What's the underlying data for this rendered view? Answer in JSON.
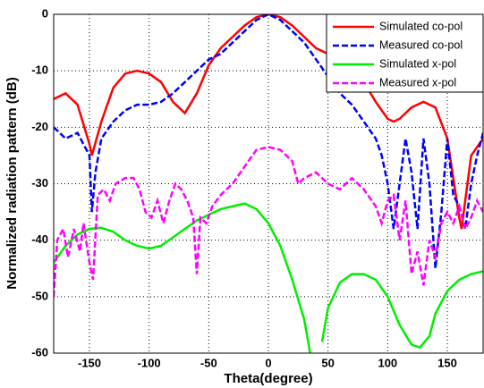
{
  "chart_data": {
    "type": "line",
    "xlabel": "Theta(degree)",
    "ylabel": "Normalized radiation pattern (dB)",
    "xlim": [
      -180,
      180
    ],
    "xticks": [
      -150,
      -100,
      -50,
      0,
      50,
      100,
      150
    ],
    "ylim": [
      -60,
      0
    ],
    "yticks": [
      -60,
      -50,
      -40,
      -30,
      -20,
      -10,
      0
    ],
    "grid": true,
    "legend": "upper right",
    "series": [
      {
        "name": "Simulated co-pol",
        "color": "#ff0000",
        "dash": false,
        "x": [
          -180,
          -170,
          -160,
          -150,
          -148,
          -140,
          -130,
          -120,
          -110,
          -100,
          -90,
          -80,
          -70,
          -60,
          -50,
          -40,
          -30,
          -20,
          -10,
          0,
          10,
          20,
          30,
          40,
          50,
          60,
          70,
          80,
          90,
          100,
          105,
          110,
          120,
          130,
          140,
          150,
          160,
          162,
          165,
          170,
          180
        ],
        "values": [
          -15,
          -14,
          -16,
          -23,
          -25,
          -19,
          -13,
          -10.5,
          -10,
          -10.5,
          -12,
          -15.5,
          -17.5,
          -14,
          -9,
          -6,
          -4,
          -2,
          -0.5,
          0,
          -0.5,
          -2,
          -4,
          -6,
          -7,
          -8,
          -9.5,
          -12,
          -15.5,
          -18.5,
          -19,
          -18.5,
          -16.5,
          -15.5,
          -16.5,
          -22,
          -36,
          -38,
          -33,
          -25,
          -22
        ]
      },
      {
        "name": "Measured co-pol",
        "color": "#0000ff",
        "dash": true,
        "x": [
          -180,
          -170,
          -160,
          -155,
          -150,
          -148,
          -145,
          -140,
          -130,
          -120,
          -110,
          -100,
          -90,
          -80,
          -70,
          -60,
          -50,
          -40,
          -30,
          -20,
          -10,
          0,
          10,
          20,
          30,
          40,
          50,
          60,
          70,
          80,
          90,
          95,
          100,
          105,
          110,
          115,
          120,
          125,
          130,
          135,
          140,
          145,
          150,
          155,
          160,
          165,
          170,
          175,
          180
        ],
        "values": [
          -20,
          -22,
          -21,
          -23,
          -25,
          -35,
          -28,
          -22,
          -19,
          -17,
          -16,
          -16,
          -15.5,
          -14,
          -12,
          -10,
          -8,
          -7,
          -5,
          -3,
          -1,
          0,
          -1,
          -3,
          -5,
          -8,
          -11,
          -14,
          -16,
          -19,
          -22,
          -25,
          -30,
          -38,
          -30,
          -22,
          -28,
          -38,
          -22,
          -30,
          -45,
          -35,
          -22,
          -32,
          -34,
          -38,
          -30,
          -25,
          -21
        ]
      },
      {
        "name": "Simulated x-pol",
        "color": "#00ee00",
        "dash": false,
        "x": [
          -180,
          -170,
          -160,
          -150,
          -140,
          -130,
          -120,
          -110,
          -100,
          -90,
          -80,
          -70,
          -60,
          -50,
          -40,
          -30,
          -20,
          -10,
          0,
          10,
          20,
          30,
          35,
          38,
          42,
          45,
          50,
          60,
          70,
          80,
          90,
          100,
          110,
          120,
          127,
          135,
          140,
          150,
          160,
          170,
          180
        ],
        "values": [
          -44,
          -41,
          -39,
          -38,
          -37.8,
          -38.5,
          -40,
          -41,
          -41.5,
          -41,
          -39.5,
          -38,
          -36.5,
          -35.5,
          -34.5,
          -34,
          -33.5,
          -34.5,
          -37,
          -41,
          -47,
          -54,
          -60,
          null,
          null,
          -58,
          -52,
          -47.5,
          -46,
          -46,
          -47,
          -50,
          -55,
          -58.5,
          -59,
          -57,
          -53,
          -49,
          -47,
          -46,
          -45.5
        ]
      },
      {
        "name": "Measured x-pol",
        "color": "#ff00ff",
        "dash": true,
        "x": [
          -180,
          -177,
          -172,
          -168,
          -163,
          -158,
          -155,
          -150,
          -147,
          -143,
          -138,
          -133,
          -128,
          -120,
          -113,
          -108,
          -103,
          -98,
          -93,
          -88,
          -83,
          -78,
          -73,
          -68,
          -63,
          -60,
          -57,
          -52,
          -47,
          -40,
          -30,
          -20,
          -10,
          0,
          10,
          20,
          25,
          30,
          40,
          50,
          60,
          70,
          80,
          90,
          95,
          100,
          105,
          110,
          115,
          120,
          125,
          130,
          135,
          140,
          145,
          150,
          155,
          160,
          165,
          170,
          175,
          180
        ],
        "values": [
          -50,
          -40,
          -38,
          -43,
          -38,
          -42,
          -37,
          -44,
          -47,
          -32,
          -31,
          -33,
          -30,
          -29,
          -29,
          -31,
          -35,
          -36,
          -33,
          -37,
          -33,
          -30,
          -31,
          -33,
          -36,
          -46,
          -36,
          -37,
          -34,
          -32,
          -30,
          -27,
          -24,
          -23.5,
          -24,
          -26,
          -30,
          -29,
          -28,
          -30,
          -31,
          -29,
          -31,
          -34,
          -37,
          -33,
          -32,
          -40,
          -33,
          -46,
          -42,
          -48,
          -40,
          -43,
          -37,
          -35,
          -37,
          -34,
          -38,
          -36,
          -33,
          -35
        ]
      }
    ]
  }
}
